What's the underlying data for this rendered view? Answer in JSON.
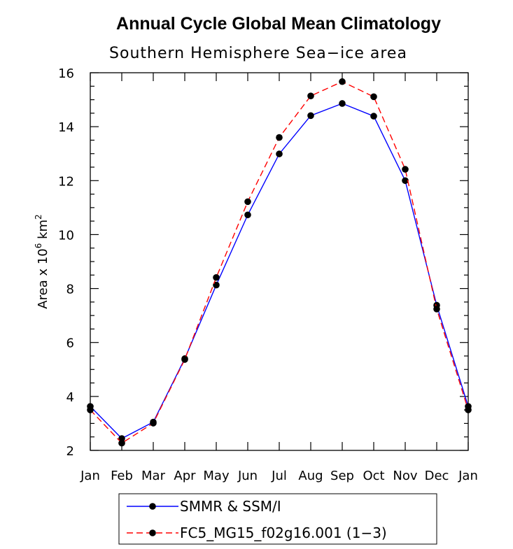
{
  "chart_data": {
    "type": "line",
    "title": "Annual Cycle Global Mean Climatology",
    "subtitle": "Southern Hemisphere Sea−ice area",
    "ylabel_prefix": "Area x 10",
    "ylabel_exp": "6",
    "ylabel_unit": " km",
    "ylabel_unit_exp": "2",
    "categories": [
      "Jan",
      "Feb",
      "Mar",
      "Apr",
      "May",
      "Jun",
      "Jul",
      "Aug",
      "Sep",
      "Oct",
      "Nov",
      "Dec",
      "Jan"
    ],
    "ylim": [
      2,
      16
    ],
    "yticks": [
      2,
      4,
      6,
      8,
      10,
      12,
      14,
      16
    ],
    "grid": false,
    "legend_position": "bottom",
    "series": [
      {
        "name": "SMMR & SSM/I",
        "color": "#0000ff",
        "dash": "solid",
        "values": [
          3.63,
          2.44,
          3.05,
          5.4,
          8.13,
          10.73,
          12.99,
          14.41,
          14.86,
          14.39,
          12.0,
          7.38,
          3.63
        ]
      },
      {
        "name": "FC5_MG15_f02g16.001 (1−3)",
        "color": "#ff0000",
        "dash": "dashed",
        "values": [
          3.5,
          2.27,
          3.01,
          5.37,
          8.41,
          11.22,
          13.6,
          15.14,
          15.67,
          15.11,
          12.42,
          7.24,
          3.5
        ]
      }
    ]
  }
}
